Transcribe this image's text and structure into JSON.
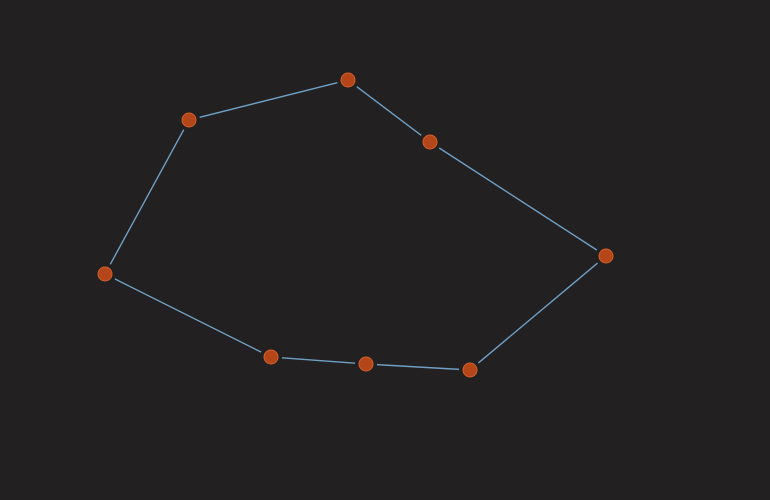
{
  "colors": {
    "background": "#232022",
    "edge": "#6fa0c4",
    "node_fill": "#b5461a",
    "node_stroke": "#d3602a"
  },
  "graph": {
    "node_count": 8,
    "closed_loop": true
  }
}
